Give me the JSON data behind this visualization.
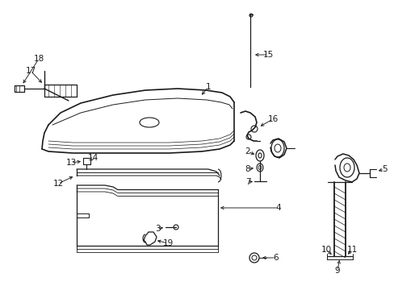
{
  "bg_color": "#ffffff",
  "fig_width": 4.89,
  "fig_height": 3.6,
  "dpi": 100,
  "line_color": "#1a1a1a",
  "label_fontsize": 7.5
}
